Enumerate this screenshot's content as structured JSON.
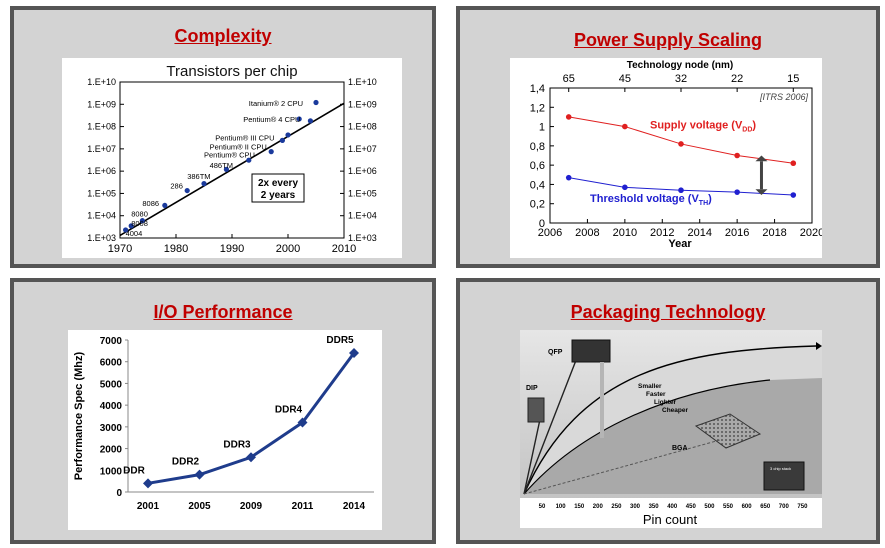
{
  "panels": {
    "complexity": {
      "title": "Complexity"
    },
    "power": {
      "title": "Power Supply Scaling"
    },
    "io": {
      "title": "I/O Performance"
    },
    "packaging": {
      "title": "Packaging Technology"
    }
  },
  "chart_data": [
    {
      "type": "scatter",
      "title": "Transistors per chip",
      "xlim": [
        1970,
        2010
      ],
      "x_ticks": [
        "1970",
        "1980",
        "1990",
        "2000",
        "2010"
      ],
      "y_scale": "log",
      "y_ticks": [
        "1.E+03",
        "1.E+04",
        "1.E+05",
        "1.E+06",
        "1.E+07",
        "1.E+08",
        "1.E+09",
        "1.E+10"
      ],
      "points": [
        {
          "x": 1971,
          "y": 2300
        },
        {
          "x": 1972,
          "y": 3500
        },
        {
          "x": 1974,
          "y": 6000
        },
        {
          "x": 1978,
          "y": 29000
        },
        {
          "x": 1982,
          "y": 134000
        },
        {
          "x": 1985,
          "y": 275000
        },
        {
          "x": 1989,
          "y": 1200000
        },
        {
          "x": 1993,
          "y": 3100000
        },
        {
          "x": 1997,
          "y": 7500000
        },
        {
          "x": 1999,
          "y": 24000000
        },
        {
          "x": 2000,
          "y": 42000000
        },
        {
          "x": 2002,
          "y": 220000000
        },
        {
          "x": 2004,
          "y": 180000000
        },
        {
          "x": 2005,
          "y": 1200000000
        }
      ],
      "point_labels": [
        {
          "text": "4004",
          "x": 1971,
          "y": 1200
        },
        {
          "text": "8008",
          "x": 1972,
          "y": 3400
        },
        {
          "text": "8080",
          "x": 1972,
          "y": 9000
        },
        {
          "text": "8086",
          "x": 1974,
          "y": 27000
        },
        {
          "text": "286",
          "x": 1979,
          "y": 170000
        },
        {
          "text": "386TM",
          "x": 1982,
          "y": 450000
        },
        {
          "text": "486TM",
          "x": 1986,
          "y": 1400000
        },
        {
          "text": "Pentium® CPU",
          "x": 1985,
          "y": 4200000
        },
        {
          "text": "Pentium® II CPU",
          "x": 1986,
          "y": 9500000
        },
        {
          "text": "Pentium® III CPU",
          "x": 1987,
          "y": 24000000
        },
        {
          "text": "Pentium® 4 CPU",
          "x": 1992,
          "y": 160000000
        },
        {
          "text": "Itanium® 2 CPU",
          "x": 1993,
          "y": 850000000
        }
      ],
      "trend": {
        "x": [
          1970,
          2010
        ],
        "y": [
          1300,
          1100000000
        ]
      },
      "annotation": [
        "2x every",
        "2 years"
      ]
    },
    {
      "type": "line",
      "top_axis_label": "Technology node (nm)",
      "top_ticks": [
        "65",
        "45",
        "32",
        "22",
        "15"
      ],
      "xlabel": "Year",
      "x_ticks": [
        "2006",
        "2008",
        "2010",
        "2012",
        "2014",
        "2016",
        "2018",
        "2020"
      ],
      "y_ticks": [
        "0",
        "0,2",
        "0,4",
        "0,6",
        "0,8",
        "1",
        "1,2",
        "1,4"
      ],
      "xlim": [
        2006,
        2020
      ],
      "ylim": [
        0,
        1.4
      ],
      "source": "[ITRS 2006]",
      "series": [
        {
          "label": "Supply voltage (V",
          "label_sub": "DD",
          "label_end": ")",
          "color": "#e02020",
          "x": [
            2007,
            2010,
            2013,
            2016,
            2019
          ],
          "y": [
            1.1,
            1.0,
            0.82,
            0.7,
            0.62
          ]
        },
        {
          "label": "Threshold voltage (V",
          "label_sub": "TH",
          "label_end": ")",
          "color": "#2020d0",
          "x": [
            2007,
            2010,
            2013,
            2016,
            2019
          ],
          "y": [
            0.47,
            0.37,
            0.34,
            0.32,
            0.29
          ]
        }
      ]
    },
    {
      "type": "line",
      "ylabel": "Performance Spec (Mhz)",
      "categories": [
        "2001",
        "2005",
        "2009",
        "2011",
        "2014"
      ],
      "values": [
        400,
        800,
        1600,
        3200,
        6400
      ],
      "point_labels": [
        "DDR",
        "DDR2",
        "DDR3",
        "DDR4",
        "DDR5"
      ],
      "y_ticks": [
        "0",
        "1000",
        "2000",
        "3000",
        "4000",
        "5000",
        "6000",
        "7000"
      ],
      "ylim": [
        0,
        7000
      ],
      "color": "#1f3c8c"
    },
    {
      "type": "area",
      "xlabel": "Pin count",
      "x_ticks": [
        "50",
        "100",
        "150",
        "200",
        "250",
        "300",
        "350",
        "400",
        "450",
        "500",
        "550",
        "600",
        "650",
        "700",
        "750"
      ],
      "package_labels": [
        "QFP",
        "DIP",
        "BGA",
        "3 chip stack"
      ],
      "trend_words": [
        "Smaller",
        "Faster",
        "Lighter",
        "Cheaper"
      ]
    }
  ]
}
